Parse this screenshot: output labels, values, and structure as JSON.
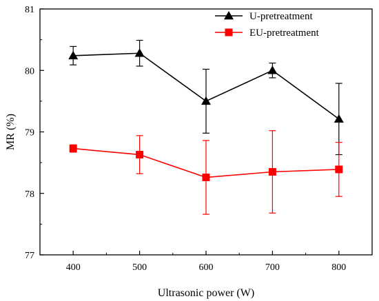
{
  "chart_data": {
    "type": "line",
    "title": "",
    "xlabel": "Ultrasonic power (W)",
    "ylabel": "MR (%)",
    "x": [
      400,
      500,
      600,
      700,
      800
    ],
    "xlim": [
      350,
      850
    ],
    "ylim": [
      77,
      81
    ],
    "x_ticks": [
      "400",
      "500",
      "600",
      "700",
      "800"
    ],
    "y_ticks": [
      "77",
      "78",
      "79",
      "80",
      "81"
    ],
    "grid": false,
    "legend_position": "top-right",
    "series": [
      {
        "name": "U-pretreatment",
        "marker": "triangle",
        "color": "#000000",
        "values": [
          80.24,
          80.28,
          79.5,
          80.0,
          79.21
        ],
        "errors": [
          0.15,
          0.21,
          0.52,
          0.12,
          0.58
        ]
      },
      {
        "name": "EU-pretreatment",
        "marker": "square",
        "color": "#ff0000",
        "values": [
          78.73,
          78.63,
          78.26,
          78.35,
          78.39
        ],
        "errors": [
          0.06,
          0.31,
          0.6,
          0.67,
          0.44
        ]
      }
    ]
  }
}
